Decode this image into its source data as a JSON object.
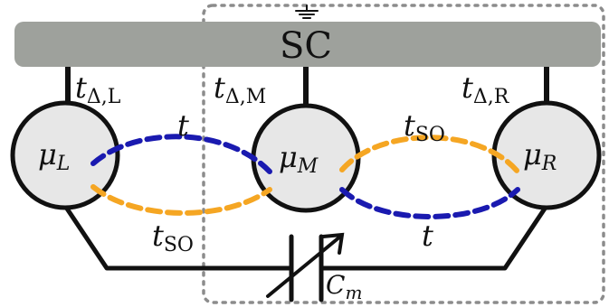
{
  "colors": {
    "background": "#ffffff",
    "superconductor": "#9ea19c",
    "dot_fill": "#e7e7e7",
    "outline": "#111111",
    "hopping": "#1a1ab0",
    "spin_orbit": "#f5a623",
    "dashed_box": "#8c8c8c"
  },
  "superconductor": {
    "label": "SC"
  },
  "dots": [
    {
      "id": "left",
      "symbol": "μ",
      "subscript": "L"
    },
    {
      "id": "middle",
      "symbol": "μ",
      "subscript": "M"
    },
    {
      "id": "right",
      "symbol": "μ",
      "subscript": "R"
    }
  ],
  "couplings": {
    "left": {
      "symbol": "t",
      "subscript": "Δ,L"
    },
    "middle": {
      "symbol": "t",
      "subscript": "Δ,M"
    },
    "right": {
      "symbol": "t",
      "subscript": "Δ,R"
    }
  },
  "hopping_labels": {
    "t_top_left": "t",
    "t_so_bottom_left": {
      "symbol": "t",
      "subscript": "SO"
    },
    "t_so_top_right": {
      "symbol": "t",
      "subscript": "SO"
    },
    "t_bottom_right": "t"
  },
  "capacitor": {
    "symbol": "C",
    "subscript": "m"
  },
  "icons": {
    "ground": "ground-icon",
    "capacitor": "variable-capacitor-icon"
  }
}
